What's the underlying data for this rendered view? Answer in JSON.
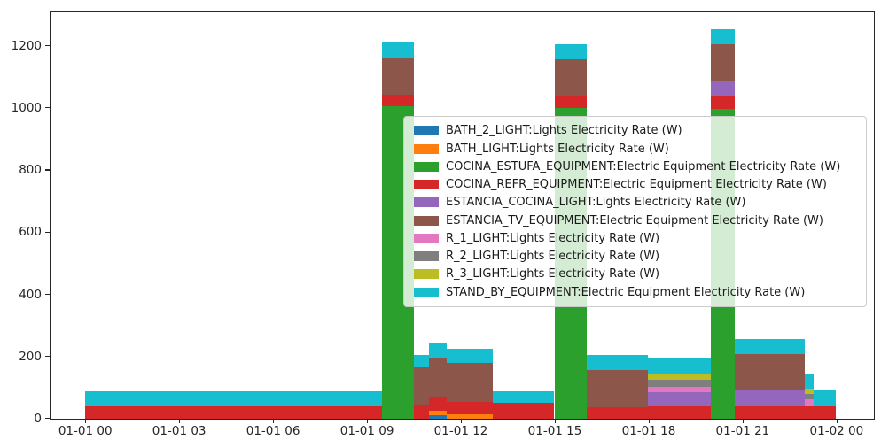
{
  "figure": {
    "background": "#ffffff"
  },
  "chart_data": {
    "type": "bar",
    "stacked": true,
    "title": "",
    "xlabel": "",
    "ylabel": "",
    "unit": "W",
    "grid": false,
    "legend_position": "center-right",
    "x_axis": {
      "ticks": [
        {
          "hour": 0,
          "label": "01-01 00"
        },
        {
          "hour": 3,
          "label": "01-01 03"
        },
        {
          "hour": 6,
          "label": "01-01 06"
        },
        {
          "hour": 9,
          "label": "01-01 09"
        },
        {
          "hour": 12,
          "label": "01-01 12"
        },
        {
          "hour": 15,
          "label": "01-01 15"
        },
        {
          "hour": 18,
          "label": "01-01 18"
        },
        {
          "hour": 21,
          "label": "01-01 21"
        },
        {
          "hour": 24,
          "label": "01-02 00"
        }
      ]
    },
    "y_axis": {
      "ticks": [
        0,
        200,
        400,
        600,
        800,
        1000,
        1200
      ],
      "ylim": [
        0,
        1310
      ]
    },
    "series": [
      {
        "key": "BATH_2",
        "label": "BATH_2_LIGHT:Lights Electricity Rate (W)",
        "color": "#1f77b4"
      },
      {
        "key": "BATH",
        "label": "BATH_LIGHT:Lights Electricity Rate (W)",
        "color": "#ff7f0e"
      },
      {
        "key": "ESTUFA",
        "label": "COCINA_ESTUFA_EQUIPMENT:Electric Equipment Electricity Rate (W)",
        "color": "#2ca02c"
      },
      {
        "key": "REFR",
        "label": "COCINA_REFR_EQUIPMENT:Electric Equipment Electricity Rate (W)",
        "color": "#d62728"
      },
      {
        "key": "EST_COCINA",
        "label": "ESTANCIA_COCINA_LIGHT:Lights Electricity Rate (W)",
        "color": "#9467bd"
      },
      {
        "key": "EST_TV",
        "label": "ESTANCIA_TV_EQUIPMENT:Electric Equipment Electricity Rate (W)",
        "color": "#8c564b"
      },
      {
        "key": "R1",
        "label": "R_1_LIGHT:Lights Electricity Rate (W)",
        "color": "#e377c2"
      },
      {
        "key": "R2",
        "label": "R_2_LIGHT:Lights Electricity Rate (W)",
        "color": "#7f7f7f"
      },
      {
        "key": "R3",
        "label": "R_3_LIGHT:Lights Electricity Rate (W)",
        "color": "#bcbd22"
      },
      {
        "key": "STANDBY",
        "label": "STAND_BY_EQUIPMENT:Electric Equipment Electricity Rate (W)",
        "color": "#17becf"
      }
    ],
    "segments": [
      {
        "start_hour": 0.0,
        "end_hour": 9.5,
        "stack": [
          {
            "series": "REFR",
            "watts": 39
          },
          {
            "series": "STANDBY",
            "watts": 49
          }
        ]
      },
      {
        "start_hour": 9.5,
        "end_hour": 10.5,
        "stack": [
          {
            "series": "ESTUFA",
            "watts": 1005
          },
          {
            "series": "REFR",
            "watts": 35
          },
          {
            "series": "EST_TV",
            "watts": 119
          },
          {
            "series": "STANDBY",
            "watts": 50
          }
        ]
      },
      {
        "start_hour": 10.5,
        "end_hour": 11.0,
        "stack": [
          {
            "series": "REFR",
            "watts": 45
          },
          {
            "series": "EST_TV",
            "watts": 119
          },
          {
            "series": "STANDBY",
            "watts": 41
          }
        ]
      },
      {
        "start_hour": 11.0,
        "end_hour": 11.57,
        "stack": [
          {
            "series": "BATH_2",
            "watts": 10
          },
          {
            "series": "BATH",
            "watts": 15
          },
          {
            "series": "REFR",
            "watts": 42
          },
          {
            "series": "EST_TV",
            "watts": 125
          },
          {
            "series": "STANDBY",
            "watts": 49
          }
        ]
      },
      {
        "start_hour": 11.57,
        "end_hour": 13.03,
        "stack": [
          {
            "series": "BATH",
            "watts": 13
          },
          {
            "series": "REFR",
            "watts": 40
          },
          {
            "series": "EST_TV",
            "watts": 125
          },
          {
            "series": "STANDBY",
            "watts": 47
          }
        ]
      },
      {
        "start_hour": 13.03,
        "end_hour": 15.0,
        "stack": [
          {
            "series": "REFR",
            "watts": 50
          },
          {
            "series": "STANDBY",
            "watts": 38
          }
        ]
      },
      {
        "start_hour": 15.0,
        "end_hour": 16.03,
        "stack": [
          {
            "series": "ESTUFA",
            "watts": 1000
          },
          {
            "series": "REFR",
            "watts": 35
          },
          {
            "series": "EST_TV",
            "watts": 121
          },
          {
            "series": "STANDBY",
            "watts": 48
          }
        ]
      },
      {
        "start_hour": 16.03,
        "end_hour": 18.0,
        "stack": [
          {
            "series": "REFR",
            "watts": 35
          },
          {
            "series": "EST_TV",
            "watts": 120
          },
          {
            "series": "STANDBY",
            "watts": 49
          }
        ]
      },
      {
        "start_hour": 18.0,
        "end_hour": 20.0,
        "stack": [
          {
            "series": "REFR",
            "watts": 39
          },
          {
            "series": "EST_COCINA",
            "watts": 46
          },
          {
            "series": "R1",
            "watts": 16
          },
          {
            "series": "R2",
            "watts": 24
          },
          {
            "series": "R3",
            "watts": 20
          },
          {
            "series": "STANDBY",
            "watts": 51
          }
        ]
      },
      {
        "start_hour": 20.0,
        "end_hour": 20.75,
        "stack": [
          {
            "series": "ESTUFA",
            "watts": 997
          },
          {
            "series": "REFR",
            "watts": 38
          },
          {
            "series": "EST_COCINA",
            "watts": 50
          },
          {
            "series": "EST_TV",
            "watts": 119
          },
          {
            "series": "STANDBY",
            "watts": 49
          }
        ]
      },
      {
        "start_hour": 20.75,
        "end_hour": 23.0,
        "stack": [
          {
            "series": "REFR",
            "watts": 39
          },
          {
            "series": "EST_COCINA",
            "watts": 51
          },
          {
            "series": "EST_TV",
            "watts": 117
          },
          {
            "series": "STANDBY",
            "watts": 47
          }
        ]
      },
      {
        "start_hour": 23.0,
        "end_hour": 23.28,
        "stack": [
          {
            "series": "REFR",
            "watts": 39
          },
          {
            "series": "R1",
            "watts": 23
          },
          {
            "series": "R2",
            "watts": 17
          },
          {
            "series": "R3",
            "watts": 16
          },
          {
            "series": "STANDBY",
            "watts": 48
          }
        ]
      },
      {
        "start_hour": 23.28,
        "end_hour": 24.0,
        "stack": [
          {
            "series": "REFR",
            "watts": 39
          },
          {
            "series": "STANDBY",
            "watts": 51
          }
        ]
      }
    ]
  }
}
